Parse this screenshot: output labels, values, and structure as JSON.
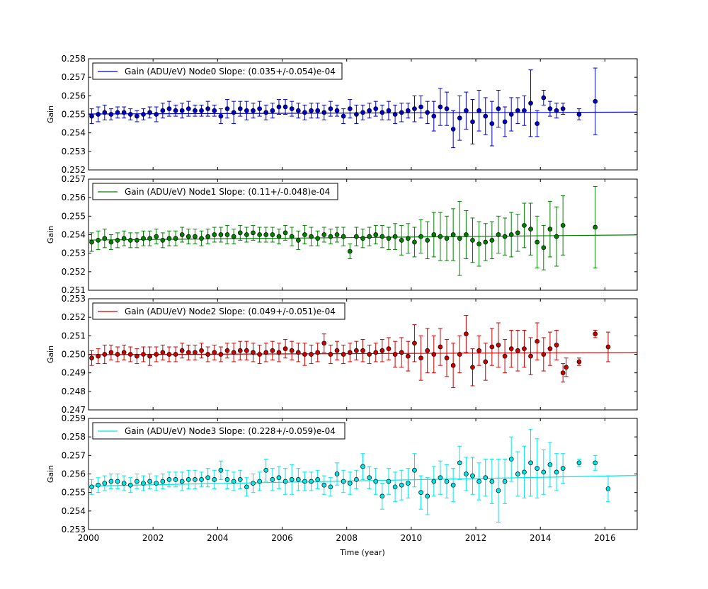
{
  "figure": {
    "xlabel": "Time (year)",
    "x_ticks": [
      "2000",
      "2002",
      "2004",
      "2006",
      "2008",
      "2010",
      "2012",
      "2014",
      "2016"
    ]
  },
  "chart_data": [
    {
      "type": "scatter",
      "title": "",
      "xlabel": "",
      "ylabel": "Gain",
      "xlim": [
        2000,
        2017
      ],
      "ylim": [
        0.252,
        0.258
      ],
      "y_ticks": [
        "0.252",
        "0.253",
        "0.254",
        "0.255",
        "0.256",
        "0.257",
        "0.258"
      ],
      "grid": false,
      "legend": {
        "text": "Gain (ADU/eV) Node0 Slope: (0.035+/-0.054)e-04",
        "placement": "top-left"
      },
      "color": "#0000cc",
      "fit": {
        "x": [
          2000,
          2017
        ],
        "y": [
          0.25502,
          0.25512
        ]
      },
      "x": [
        2000.1,
        2000.3,
        2000.5,
        2000.7,
        2000.9,
        2001.1,
        2001.3,
        2001.5,
        2001.7,
        2001.9,
        2002.1,
        2002.3,
        2002.5,
        2002.7,
        2002.9,
        2003.1,
        2003.3,
        2003.5,
        2003.7,
        2003.9,
        2004.1,
        2004.3,
        2004.5,
        2004.7,
        2004.9,
        2005.1,
        2005.3,
        2005.5,
        2005.7,
        2005.9,
        2006.1,
        2006.3,
        2006.5,
        2006.7,
        2006.9,
        2007.1,
        2007.3,
        2007.5,
        2007.7,
        2007.9,
        2008.1,
        2008.3,
        2008.5,
        2008.7,
        2008.9,
        2009.1,
        2009.3,
        2009.5,
        2009.7,
        2009.9,
        2010.1,
        2010.3,
        2010.5,
        2010.7,
        2010.9,
        2011.1,
        2011.3,
        2011.5,
        2011.7,
        2011.9,
        2012.1,
        2012.3,
        2012.5,
        2012.7,
        2012.9,
        2013.1,
        2013.3,
        2013.5,
        2013.7,
        2013.9,
        2014.1,
        2014.3,
        2014.5,
        2014.7,
        2015.2,
        2015.7
      ],
      "y": [
        0.2549,
        0.255,
        0.2551,
        0.255,
        0.2551,
        0.2551,
        0.255,
        0.2549,
        0.255,
        0.2551,
        0.255,
        0.2552,
        0.2553,
        0.2552,
        0.2552,
        0.2553,
        0.2552,
        0.2552,
        0.2553,
        0.2552,
        0.2549,
        0.2553,
        0.2551,
        0.2553,
        0.2552,
        0.2552,
        0.2553,
        0.2551,
        0.2552,
        0.2554,
        0.2554,
        0.2553,
        0.2552,
        0.2551,
        0.2552,
        0.2552,
        0.2551,
        0.2553,
        0.2552,
        0.2549,
        0.2553,
        0.255,
        0.2551,
        0.2552,
        0.2553,
        0.2551,
        0.2552,
        0.255,
        0.2551,
        0.2552,
        0.2553,
        0.2554,
        0.2551,
        0.2549,
        0.2554,
        0.2553,
        0.2542,
        0.2548,
        0.2552,
        0.2546,
        0.2552,
        0.2549,
        0.2545,
        0.2553,
        0.2546,
        0.255,
        0.2552,
        0.2552,
        0.2556,
        0.2545,
        0.2559,
        0.2553,
        0.2552,
        0.2553,
        0.255,
        0.2557
      ],
      "err": [
        0.0004,
        0.0004,
        0.0004,
        0.0003,
        0.0003,
        0.0003,
        0.0003,
        0.0003,
        0.0003,
        0.0003,
        0.0004,
        0.0004,
        0.0004,
        0.0003,
        0.0004,
        0.0004,
        0.0003,
        0.0003,
        0.0004,
        0.0003,
        0.0004,
        0.0005,
        0.0006,
        0.0004,
        0.0005,
        0.0004,
        0.0004,
        0.0004,
        0.0004,
        0.0004,
        0.0004,
        0.0004,
        0.0004,
        0.0004,
        0.0004,
        0.0004,
        0.0004,
        0.0004,
        0.0003,
        0.0004,
        0.0005,
        0.0005,
        0.0004,
        0.0004,
        0.0004,
        0.0004,
        0.0005,
        0.0005,
        0.0005,
        0.0004,
        0.0007,
        0.0006,
        0.0006,
        0.0008,
        0.001,
        0.0009,
        0.001,
        0.0012,
        0.001,
        0.0012,
        0.0011,
        0.001,
        0.0012,
        0.001,
        0.0008,
        0.0009,
        0.0007,
        0.0008,
        0.0018,
        0.0007,
        0.0004,
        0.0004,
        0.0004,
        0.0003,
        0.0003,
        0.0018
      ]
    },
    {
      "type": "scatter",
      "title": "",
      "xlabel": "",
      "ylabel": "Gain",
      "xlim": [
        2000,
        2017
      ],
      "ylim": [
        0.251,
        0.257
      ],
      "y_ticks": [
        "0.251",
        "0.252",
        "0.253",
        "0.254",
        "0.255",
        "0.256",
        "0.257"
      ],
      "grid": false,
      "legend": {
        "text": "Gain (ADU/eV) Node1 Slope: (0.11+/-0.048)e-04",
        "placement": "top-left"
      },
      "color": "#008000",
      "fit": {
        "x": [
          2000,
          2017
        ],
        "y": [
          0.25371,
          0.25399
        ]
      },
      "x": [
        2000.1,
        2000.3,
        2000.5,
        2000.7,
        2000.9,
        2001.1,
        2001.3,
        2001.5,
        2001.7,
        2001.9,
        2002.1,
        2002.3,
        2002.5,
        2002.7,
        2002.9,
        2003.1,
        2003.3,
        2003.5,
        2003.7,
        2003.9,
        2004.1,
        2004.3,
        2004.5,
        2004.7,
        2004.9,
        2005.1,
        2005.3,
        2005.5,
        2005.7,
        2005.9,
        2006.1,
        2006.3,
        2006.5,
        2006.7,
        2006.9,
        2007.1,
        2007.3,
        2007.5,
        2007.7,
        2007.9,
        2008.1,
        2008.3,
        2008.5,
        2008.7,
        2008.9,
        2009.1,
        2009.3,
        2009.5,
        2009.7,
        2009.9,
        2010.1,
        2010.3,
        2010.5,
        2010.7,
        2010.9,
        2011.1,
        2011.3,
        2011.5,
        2011.7,
        2011.9,
        2012.1,
        2012.3,
        2012.5,
        2012.7,
        2012.9,
        2013.1,
        2013.3,
        2013.5,
        2013.7,
        2013.9,
        2014.1,
        2014.3,
        2014.5,
        2014.7,
        2015.7
      ],
      "y": [
        0.2536,
        0.2537,
        0.2538,
        0.2536,
        0.2537,
        0.2538,
        0.2537,
        0.2537,
        0.2538,
        0.2538,
        0.2539,
        0.2537,
        0.2538,
        0.2538,
        0.254,
        0.2539,
        0.2539,
        0.2538,
        0.2539,
        0.254,
        0.254,
        0.254,
        0.2539,
        0.2541,
        0.254,
        0.2541,
        0.254,
        0.254,
        0.254,
        0.2539,
        0.2541,
        0.2539,
        0.2537,
        0.254,
        0.2539,
        0.2538,
        0.254,
        0.2539,
        0.254,
        0.2539,
        0.2531,
        0.2539,
        0.2538,
        0.2539,
        0.254,
        0.2539,
        0.2538,
        0.2539,
        0.2537,
        0.2538,
        0.2536,
        0.2539,
        0.2537,
        0.254,
        0.2539,
        0.2538,
        0.254,
        0.2538,
        0.254,
        0.2537,
        0.2535,
        0.2536,
        0.2537,
        0.254,
        0.2539,
        0.254,
        0.2541,
        0.2545,
        0.2543,
        0.2536,
        0.2533,
        0.2543,
        0.2539,
        0.2545,
        0.2544
      ],
      "err": [
        0.0005,
        0.0005,
        0.0005,
        0.0004,
        0.0004,
        0.0004,
        0.0004,
        0.0004,
        0.0004,
        0.0004,
        0.0004,
        0.0004,
        0.0004,
        0.0004,
        0.0004,
        0.0004,
        0.0004,
        0.0004,
        0.0004,
        0.0004,
        0.0004,
        0.0005,
        0.0004,
        0.0004,
        0.0004,
        0.0004,
        0.0004,
        0.0004,
        0.0004,
        0.0004,
        0.0004,
        0.0005,
        0.0005,
        0.0005,
        0.0005,
        0.0004,
        0.0004,
        0.0004,
        0.0004,
        0.0005,
        0.0004,
        0.0005,
        0.0005,
        0.0005,
        0.0005,
        0.0006,
        0.0006,
        0.0007,
        0.0008,
        0.0008,
        0.0008,
        0.0009,
        0.001,
        0.0012,
        0.0013,
        0.0012,
        0.0014,
        0.002,
        0.0013,
        0.0012,
        0.0012,
        0.001,
        0.001,
        0.001,
        0.001,
        0.0012,
        0.001,
        0.0012,
        0.0014,
        0.0014,
        0.0012,
        0.0015,
        0.0016,
        0.0016,
        0.0022
      ]
    },
    {
      "type": "scatter",
      "title": "",
      "xlabel": "",
      "ylabel": "Gain",
      "xlim": [
        2000,
        2017
      ],
      "ylim": [
        0.247,
        0.253
      ],
      "y_ticks": [
        "0.247",
        "0.248",
        "0.249",
        "0.250",
        "0.251",
        "0.252",
        "0.253"
      ],
      "grid": false,
      "legend": {
        "text": "Gain (ADU/eV) Node2 Slope: (0.049+/-0.051)e-04",
        "placement": "top-left"
      },
      "color": "#cc0000",
      "fit": {
        "x": [
          2000,
          2017
        ],
        "y": [
          0.24998,
          0.2501
        ]
      },
      "x": [
        2000.1,
        2000.3,
        2000.5,
        2000.7,
        2000.9,
        2001.1,
        2001.3,
        2001.5,
        2001.7,
        2001.9,
        2002.1,
        2002.3,
        2002.5,
        2002.7,
        2002.9,
        2003.1,
        2003.3,
        2003.5,
        2003.7,
        2003.9,
        2004.1,
        2004.3,
        2004.5,
        2004.7,
        2004.9,
        2005.1,
        2005.3,
        2005.5,
        2005.7,
        2005.9,
        2006.1,
        2006.3,
        2006.5,
        2006.7,
        2006.9,
        2007.1,
        2007.3,
        2007.5,
        2007.7,
        2007.9,
        2008.1,
        2008.3,
        2008.5,
        2008.7,
        2008.9,
        2009.1,
        2009.3,
        2009.5,
        2009.7,
        2009.9,
        2010.1,
        2010.3,
        2010.5,
        2010.7,
        2010.9,
        2011.1,
        2011.3,
        2011.5,
        2011.7,
        2011.9,
        2012.1,
        2012.3,
        2012.5,
        2012.7,
        2012.9,
        2013.1,
        2013.3,
        2013.5,
        2013.7,
        2013.9,
        2014.1,
        2014.3,
        2014.5,
        2014.7,
        2014.8,
        2015.2,
        2015.7,
        2016.1
      ],
      "y": [
        0.2498,
        0.2499,
        0.25,
        0.2501,
        0.25,
        0.2501,
        0.25,
        0.2499,
        0.25,
        0.2499,
        0.25,
        0.2501,
        0.25,
        0.25,
        0.2502,
        0.2501,
        0.2501,
        0.2502,
        0.25,
        0.2501,
        0.25,
        0.2502,
        0.2501,
        0.2502,
        0.2502,
        0.2501,
        0.25,
        0.2501,
        0.2502,
        0.2501,
        0.2503,
        0.2502,
        0.2501,
        0.25,
        0.25,
        0.2501,
        0.2506,
        0.25,
        0.2502,
        0.25,
        0.2501,
        0.2502,
        0.2502,
        0.25,
        0.2501,
        0.2502,
        0.2503,
        0.25,
        0.2501,
        0.2499,
        0.2506,
        0.2498,
        0.2502,
        0.25,
        0.2504,
        0.2498,
        0.2494,
        0.25,
        0.2511,
        0.2493,
        0.2502,
        0.2496,
        0.2504,
        0.2505,
        0.2499,
        0.2503,
        0.2502,
        0.2503,
        0.2499,
        0.2507,
        0.25,
        0.2503,
        0.2505,
        0.249,
        0.2493,
        0.2496,
        0.2511,
        0.2504
      ],
      "err": [
        0.0004,
        0.0004,
        0.0005,
        0.0004,
        0.0004,
        0.0004,
        0.0004,
        0.0004,
        0.0004,
        0.0005,
        0.0004,
        0.0004,
        0.0004,
        0.0004,
        0.0004,
        0.0004,
        0.0004,
        0.0004,
        0.0004,
        0.0004,
        0.0004,
        0.0004,
        0.0005,
        0.0005,
        0.0005,
        0.0005,
        0.0005,
        0.0005,
        0.0005,
        0.0005,
        0.0005,
        0.0005,
        0.0005,
        0.0006,
        0.0005,
        0.0005,
        0.0005,
        0.0005,
        0.0005,
        0.0005,
        0.0005,
        0.0005,
        0.0006,
        0.0005,
        0.0005,
        0.0006,
        0.0006,
        0.0007,
        0.0008,
        0.0008,
        0.001,
        0.0012,
        0.0012,
        0.001,
        0.001,
        0.001,
        0.0012,
        0.001,
        0.001,
        0.001,
        0.0008,
        0.001,
        0.001,
        0.0012,
        0.0009,
        0.001,
        0.0011,
        0.001,
        0.001,
        0.001,
        0.0009,
        0.0009,
        0.0008,
        0.0005,
        0.0005,
        0.0002,
        0.0002,
        0.0008
      ]
    },
    {
      "type": "scatter",
      "title": "",
      "xlabel": "Time (year)",
      "ylabel": "Gain",
      "xlim": [
        2000,
        2017
      ],
      "ylim": [
        0.253,
        0.259
      ],
      "y_ticks": [
        "0.253",
        "0.254",
        "0.255",
        "0.256",
        "0.257",
        "0.258",
        "0.259"
      ],
      "grid": false,
      "legend": {
        "text": "Gain (ADU/eV) Node3 Slope: (0.228+/-0.059)e-04",
        "placement": "top-left"
      },
      "color": "#00e5e5",
      "fit": {
        "x": [
          2000,
          2017
        ],
        "y": [
          0.25535,
          0.25592
        ]
      },
      "x": [
        2000.1,
        2000.3,
        2000.5,
        2000.7,
        2000.9,
        2001.1,
        2001.3,
        2001.5,
        2001.7,
        2001.9,
        2002.1,
        2002.3,
        2002.5,
        2002.7,
        2002.9,
        2003.1,
        2003.3,
        2003.5,
        2003.7,
        2003.9,
        2004.1,
        2004.3,
        2004.5,
        2004.7,
        2004.9,
        2005.1,
        2005.3,
        2005.5,
        2005.7,
        2005.9,
        2006.1,
        2006.3,
        2006.5,
        2006.7,
        2006.9,
        2007.1,
        2007.3,
        2007.5,
        2007.7,
        2007.9,
        2008.1,
        2008.3,
        2008.5,
        2008.7,
        2008.9,
        2009.1,
        2009.3,
        2009.5,
        2009.7,
        2009.9,
        2010.1,
        2010.3,
        2010.5,
        2010.7,
        2010.9,
        2011.1,
        2011.3,
        2011.5,
        2011.7,
        2011.9,
        2012.1,
        2012.3,
        2012.5,
        2012.7,
        2012.9,
        2013.1,
        2013.3,
        2013.5,
        2013.7,
        2013.9,
        2014.1,
        2014.3,
        2014.5,
        2014.7,
        2015.2,
        2015.7,
        2016.1
      ],
      "y": [
        0.2553,
        0.2554,
        0.2555,
        0.2556,
        0.2556,
        0.2555,
        0.2554,
        0.2556,
        0.2555,
        0.2556,
        0.2555,
        0.2556,
        0.2557,
        0.2557,
        0.2556,
        0.2557,
        0.2557,
        0.2557,
        0.2558,
        0.2557,
        0.2562,
        0.2557,
        0.2556,
        0.2557,
        0.2553,
        0.2555,
        0.2556,
        0.2562,
        0.2557,
        0.2558,
        0.2556,
        0.2557,
        0.2557,
        0.2556,
        0.2556,
        0.2557,
        0.2554,
        0.2553,
        0.256,
        0.2556,
        0.2555,
        0.2557,
        0.2564,
        0.2558,
        0.2556,
        0.2548,
        0.2556,
        0.2553,
        0.2554,
        0.2555,
        0.2562,
        0.255,
        0.2548,
        0.2556,
        0.2558,
        0.2556,
        0.2554,
        0.2566,
        0.256,
        0.2559,
        0.2556,
        0.2558,
        0.2556,
        0.2551,
        0.2556,
        0.2568,
        0.256,
        0.2561,
        0.2566,
        0.2563,
        0.2561,
        0.2565,
        0.2561,
        0.2563,
        0.2566,
        0.2566,
        0.2552
      ],
      "err": [
        0.0004,
        0.0004,
        0.0004,
        0.0004,
        0.0004,
        0.0004,
        0.0004,
        0.0004,
        0.0004,
        0.0004,
        0.0004,
        0.0004,
        0.0004,
        0.0004,
        0.0005,
        0.0005,
        0.0005,
        0.0004,
        0.0005,
        0.0005,
        0.0005,
        0.0005,
        0.0005,
        0.0005,
        0.0005,
        0.0005,
        0.0005,
        0.0006,
        0.0006,
        0.0006,
        0.0007,
        0.0008,
        0.0006,
        0.0005,
        0.0005,
        0.0005,
        0.0005,
        0.0005,
        0.0006,
        0.0006,
        0.0006,
        0.0005,
        0.0007,
        0.0006,
        0.0007,
        0.0007,
        0.0007,
        0.0008,
        0.0008,
        0.0008,
        0.0009,
        0.0009,
        0.001,
        0.0008,
        0.0009,
        0.0009,
        0.0009,
        0.0009,
        0.0009,
        0.001,
        0.001,
        0.001,
        0.0012,
        0.0017,
        0.0012,
        0.0012,
        0.0012,
        0.0014,
        0.0018,
        0.0016,
        0.0012,
        0.0012,
        0.001,
        0.0008,
        0.0002,
        0.0004,
        0.0007
      ]
    }
  ]
}
